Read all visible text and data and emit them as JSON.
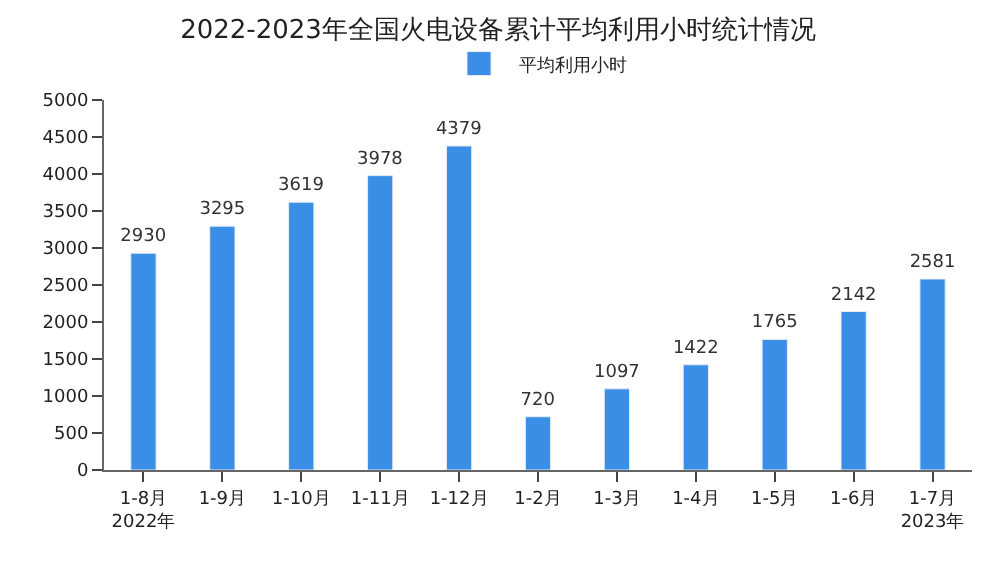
{
  "chart_data": {
    "type": "bar",
    "title": "2022-2023年全国火电设备累计平均利用小时统计情况",
    "categories": [
      "1-8月\n2022年",
      "1-9月",
      "1-10月",
      "1-11月",
      "1-12月",
      "1-2月",
      "1-3月",
      "1-4月",
      "1-5月",
      "1-6月",
      "1-7月\n2023年"
    ],
    "series": [
      {
        "name": "平均利用小时",
        "color": "#3a8ee6",
        "values": [
          2930,
          3295,
          3619,
          3978,
          4379,
          720,
          1097,
          1422,
          1765,
          2142,
          2581
        ]
      }
    ],
    "ylim": [
      0,
      5000
    ],
    "yticks": [
      0,
      500,
      1000,
      1500,
      2000,
      2500,
      3000,
      3500,
      4000,
      4500,
      5000
    ],
    "data_labels": true,
    "legend": "top"
  }
}
